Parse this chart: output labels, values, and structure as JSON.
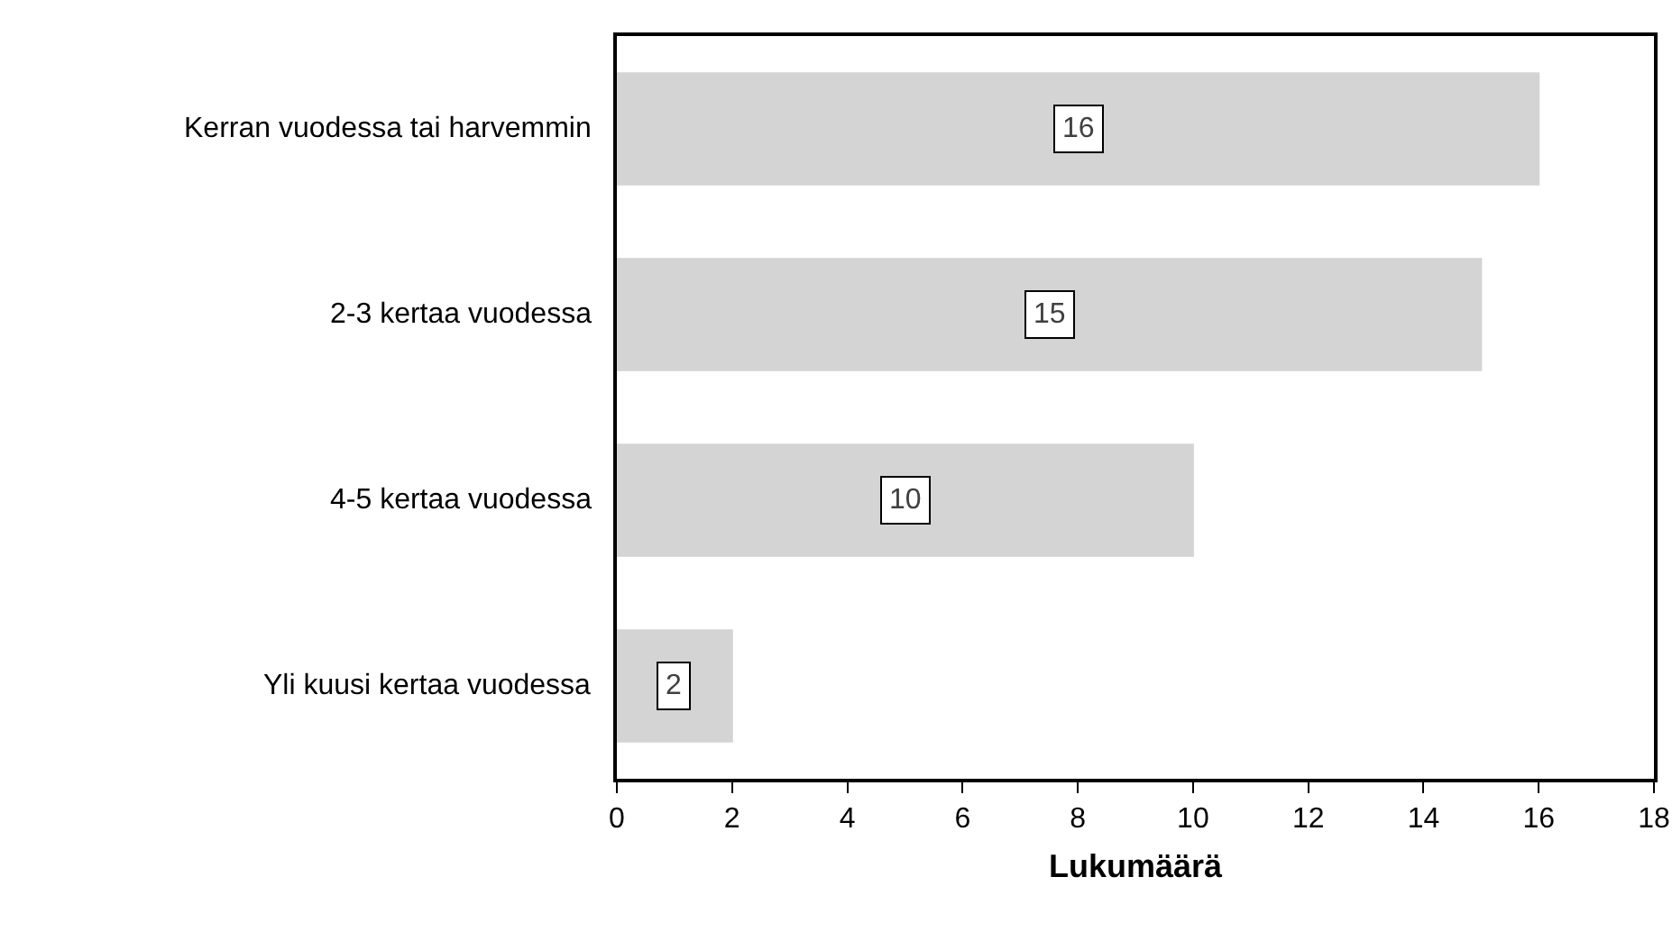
{
  "chart_data": {
    "type": "bar",
    "orientation": "horizontal",
    "categories": [
      "Kerran vuodessa tai harvemmin",
      "2-3 kertaa vuodessa",
      "4-5 kertaa vuodessa",
      "Yli kuusi kertaa vuodessa"
    ],
    "values": [
      16,
      15,
      10,
      2
    ],
    "color": "#d4d4d4",
    "xlim": [
      0,
      18
    ],
    "xticks": [
      0,
      2,
      4,
      6,
      8,
      10,
      12,
      14,
      16,
      18
    ],
    "xlabel": "Lukumäärä",
    "data_labels": true,
    "grid": false
  }
}
